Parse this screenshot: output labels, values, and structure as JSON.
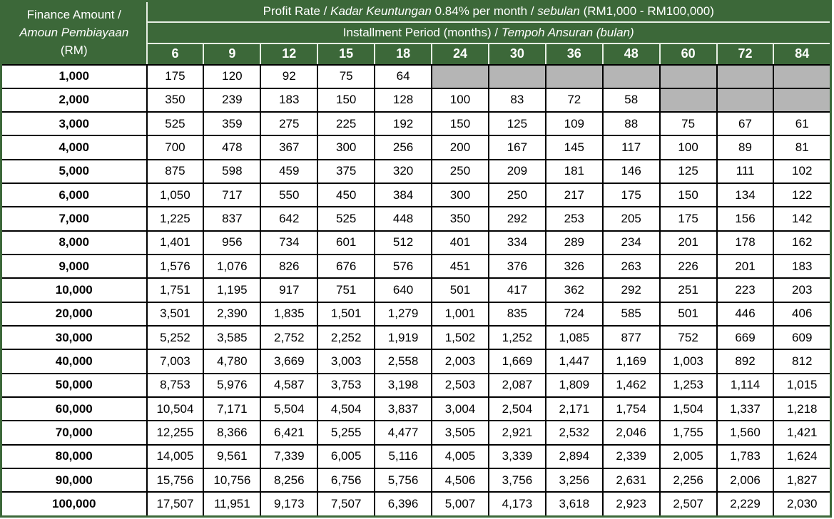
{
  "colors": {
    "header_green": "#3c6839",
    "empty_cell_gray": "#b5b5b5",
    "grid_black": "#000000",
    "header_line_white": "#e7efe4",
    "cell_white": "#ffffff"
  },
  "header": {
    "finance": {
      "line1": "Finance Amount /",
      "line2": "Amoun Pembiayaan",
      "line3": "(RM)"
    },
    "profit_rate": {
      "part1": "Profit Rate / ",
      "italic1": "Kadar Keuntungan",
      "part2": " 0.84% per month / ",
      "italic2": "sebulan",
      "part3": " (RM1,000 - RM100,000)"
    },
    "installment": {
      "part1": "Installment Period (months) / ",
      "italic1": "Tempoh Ansuran (bulan)"
    },
    "months": [
      "6",
      "9",
      "12",
      "15",
      "18",
      "24",
      "30",
      "36",
      "48",
      "60",
      "72",
      "84"
    ]
  },
  "table": {
    "rows": [
      {
        "amount": "1,000",
        "values": [
          "175",
          "120",
          "92",
          "75",
          "64",
          "",
          "",
          "",
          "",
          "",
          "",
          ""
        ]
      },
      {
        "amount": "2,000",
        "values": [
          "350",
          "239",
          "183",
          "150",
          "128",
          "100",
          "83",
          "72",
          "58",
          "",
          "",
          ""
        ]
      },
      {
        "amount": "3,000",
        "values": [
          "525",
          "359",
          "275",
          "225",
          "192",
          "150",
          "125",
          "109",
          "88",
          "75",
          "67",
          "61"
        ]
      },
      {
        "amount": "4,000",
        "values": [
          "700",
          "478",
          "367",
          "300",
          "256",
          "200",
          "167",
          "145",
          "117",
          "100",
          "89",
          "81"
        ]
      },
      {
        "amount": "5,000",
        "values": [
          "875",
          "598",
          "459",
          "375",
          "320",
          "250",
          "209",
          "181",
          "146",
          "125",
          "111",
          "102"
        ]
      },
      {
        "amount": "6,000",
        "values": [
          "1,050",
          "717",
          "550",
          "450",
          "384",
          "300",
          "250",
          "217",
          "175",
          "150",
          "134",
          "122"
        ]
      },
      {
        "amount": "7,000",
        "values": [
          "1,225",
          "837",
          "642",
          "525",
          "448",
          "350",
          "292",
          "253",
          "205",
          "175",
          "156",
          "142"
        ]
      },
      {
        "amount": "8,000",
        "values": [
          "1,401",
          "956",
          "734",
          "601",
          "512",
          "401",
          "334",
          "289",
          "234",
          "201",
          "178",
          "162"
        ]
      },
      {
        "amount": "9,000",
        "values": [
          "1,576",
          "1,076",
          "826",
          "676",
          "576",
          "451",
          "376",
          "326",
          "263",
          "226",
          "201",
          "183"
        ]
      },
      {
        "amount": "10,000",
        "values": [
          "1,751",
          "1,195",
          "917",
          "751",
          "640",
          "501",
          "417",
          "362",
          "292",
          "251",
          "223",
          "203"
        ]
      },
      {
        "amount": "20,000",
        "values": [
          "3,501",
          "2,390",
          "1,835",
          "1,501",
          "1,279",
          "1,001",
          "835",
          "724",
          "585",
          "501",
          "446",
          "406"
        ]
      },
      {
        "amount": "30,000",
        "values": [
          "5,252",
          "3,585",
          "2,752",
          "2,252",
          "1,919",
          "1,502",
          "1,252",
          "1,085",
          "877",
          "752",
          "669",
          "609"
        ]
      },
      {
        "amount": "40,000",
        "values": [
          "7,003",
          "4,780",
          "3,669",
          "3,003",
          "2,558",
          "2,003",
          "1,669",
          "1,447",
          "1,169",
          "1,003",
          "892",
          "812"
        ]
      },
      {
        "amount": "50,000",
        "values": [
          "8,753",
          "5,976",
          "4,587",
          "3,753",
          "3,198",
          "2,503",
          "2,087",
          "1,809",
          "1,462",
          "1,253",
          "1,114",
          "1,015"
        ]
      },
      {
        "amount": "60,000",
        "values": [
          "10,504",
          "7,171",
          "5,504",
          "4,504",
          "3,837",
          "3,004",
          "2,504",
          "2,171",
          "1,754",
          "1,504",
          "1,337",
          "1,218"
        ]
      },
      {
        "amount": "70,000",
        "values": [
          "12,255",
          "8,366",
          "6,421",
          "5,255",
          "4,477",
          "3,505",
          "2,921",
          "2,532",
          "2,046",
          "1,755",
          "1,560",
          "1,421"
        ]
      },
      {
        "amount": "80,000",
        "values": [
          "14,005",
          "9,561",
          "7,339",
          "6,005",
          "5,116",
          "4,005",
          "3,339",
          "2,894",
          "2,339",
          "2,005",
          "1,783",
          "1,624"
        ]
      },
      {
        "amount": "90,000",
        "values": [
          "15,756",
          "10,756",
          "8,256",
          "6,756",
          "5,756",
          "4,506",
          "3,756",
          "3,256",
          "2,631",
          "2,256",
          "2,006",
          "1,827"
        ]
      },
      {
        "amount": "100,000",
        "values": [
          "17,507",
          "11,951",
          "9,173",
          "7,507",
          "6,396",
          "5,007",
          "4,173",
          "3,618",
          "2,923",
          "2,507",
          "2,229",
          "2,030"
        ]
      }
    ]
  }
}
